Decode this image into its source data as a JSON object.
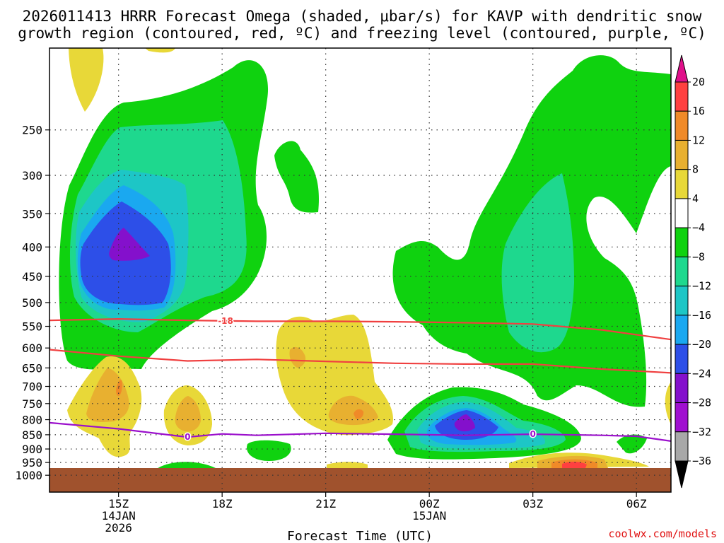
{
  "chart_data": {
    "type": "heatmap",
    "title_line1": "2026011413 HRRR Forecast Omega (shaded, μbar/s) for KAVP with dendritic snow",
    "title_line2": "growth region (contoured, red, ºC) and freezing level (contoured, purple, ºC)",
    "xlabel": "Forecast Time (UTC)",
    "ylabel": "",
    "x_unit": "hours after 2026-01-14 13Z",
    "xlim": [
      0,
      18
    ],
    "ylim_hpa": [
      1070,
      180
    ],
    "y_scale": "log pressure (reversed)",
    "x_ticks": [
      {
        "value": 2,
        "lines": [
          "15Z",
          "14JAN",
          "2026"
        ]
      },
      {
        "value": 5,
        "lines": [
          "18Z"
        ]
      },
      {
        "value": 8,
        "lines": [
          "21Z"
        ]
      },
      {
        "value": 11,
        "lines": [
          "00Z",
          "15JAN"
        ]
      },
      {
        "value": 14,
        "lines": [
          "03Z"
        ]
      },
      {
        "value": 17,
        "lines": [
          "06Z"
        ]
      }
    ],
    "y_ticks": [
      250,
      300,
      350,
      400,
      450,
      500,
      550,
      600,
      650,
      700,
      750,
      800,
      850,
      900,
      950,
      1000
    ],
    "grid": "dotted",
    "ground_level_hpa": 965,
    "colorbar": {
      "levels": [
        "20",
        "16",
        "12",
        "8",
        "4",
        "−4",
        "−8",
        "−12",
        "−16",
        "−20",
        "−24",
        "−28",
        "−32",
        "−36"
      ],
      "colors": [
        "#ff4040",
        "#f08a28",
        "#e8b030",
        "#e8d838",
        "#ffffff",
        "#0fd20f",
        "#1ed88e",
        "#1dc6c6",
        "#1aa8f0",
        "#2d4fe8",
        "#8410cc",
        "#a010d0",
        "#a8a8a8"
      ],
      "top_color": "#e0108a",
      "bottom_color": "#000000"
    },
    "omega_features": [
      {
        "desc": "upper ascent core",
        "time": 2.1,
        "p_hpa": 430,
        "min_value": -26
      },
      {
        "desc": "low-level ascent core",
        "time": 12.0,
        "p_hpa": 820,
        "min_value": -24
      },
      {
        "desc": "upper ascent east",
        "time": 14.8,
        "p_hpa": 400,
        "min_value": -12
      },
      {
        "desc": "descent 15Z",
        "time": 2.0,
        "p_hpa": 740,
        "max_value": 11
      },
      {
        "desc": "descent 17Z",
        "time": 4.0,
        "p_hpa": 790,
        "max_value": 10
      },
      {
        "desc": "descent 22Z",
        "time": 9.0,
        "p_hpa": 790,
        "max_value": 11
      },
      {
        "desc": "descent 04Z low",
        "time": 15.0,
        "p_hpa": 955,
        "max_value": 20
      }
    ],
    "series": [
      {
        "name": "dendritic growth upper (-18 ºC)",
        "color": "#f04040",
        "label": "-18",
        "time": [
          0,
          2,
          4,
          6,
          8,
          10,
          12,
          14,
          16,
          18
        ],
        "p_hpa": [
          537,
          534,
          537,
          539,
          539,
          540,
          542,
          545,
          558,
          580
        ]
      },
      {
        "name": "dendritic growth lower (-12 ºC)",
        "color": "#f04040",
        "label": "",
        "time": [
          0,
          2,
          4,
          6,
          8,
          10,
          12,
          14,
          16,
          18
        ],
        "p_hpa": [
          604,
          620,
          632,
          628,
          633,
          638,
          640,
          640,
          653,
          663
        ]
      },
      {
        "name": "freezing level (0 ºC)",
        "color": "#9b10cc",
        "label": "0",
        "time": [
          0,
          2,
          4,
          5,
          6,
          8,
          10,
          12,
          14,
          16,
          17,
          18
        ],
        "p_hpa": [
          810,
          830,
          858,
          847,
          852,
          845,
          848,
          852,
          848,
          852,
          855,
          872
        ]
      }
    ],
    "contour_label_positions": [
      {
        "series": 0,
        "time": 5.1,
        "text": "-18"
      },
      {
        "series": 2,
        "time": 4.0,
        "text": "0"
      },
      {
        "series": 2,
        "time": 14.0,
        "text": "0"
      }
    ]
  },
  "credit": {
    "text": "coolwx.com/models",
    "color": "#e01010"
  }
}
